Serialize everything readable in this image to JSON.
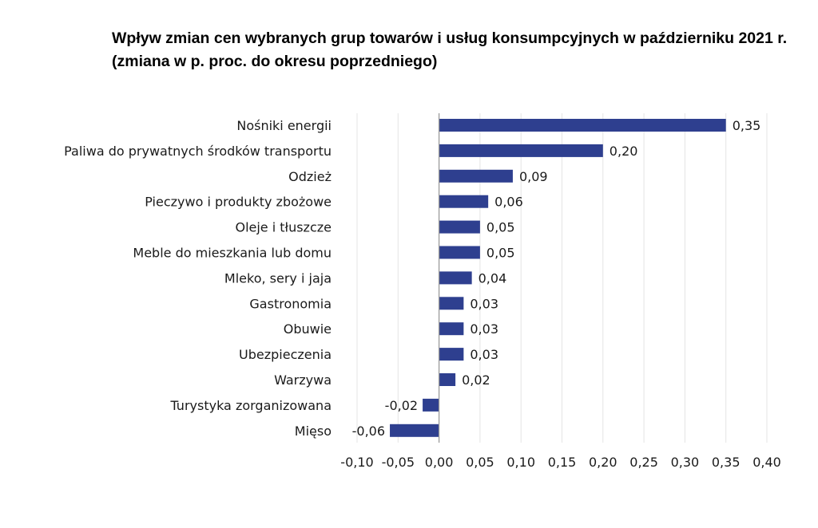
{
  "chart_data": {
    "type": "bar",
    "orientation": "horizontal",
    "title": "Wpływ zmian cen wybranych grup towarów i usług konsumpcyjnych w październiku 2021 r.",
    "subtitle": "(zmiana w p. proc. do okresu poprzedniego)",
    "categories": [
      "Nośniki energii",
      "Paliwa do prywatnych środków transportu",
      "Odzież",
      "Pieczywo i produkty zbożowe",
      "Oleje i tłuszcze",
      "Meble do mieszkania lub domu",
      "Mleko, sery i jaja",
      "Gastronomia",
      "Obuwie",
      "Ubezpieczenia",
      "Warzywa",
      "Turystyka zorganizowana",
      "Mięso"
    ],
    "values": [
      0.35,
      0.2,
      0.09,
      0.06,
      0.05,
      0.05,
      0.04,
      0.03,
      0.03,
      0.03,
      0.02,
      -0.02,
      -0.06
    ],
    "value_labels": [
      "0,35",
      "0,20",
      "0,09",
      "0,06",
      "0,05",
      "0,05",
      "0,04",
      "0,03",
      "0,03",
      "0,03",
      "0,02",
      "-0,02",
      "-0,06"
    ],
    "xlim": [
      -0.1,
      0.4
    ],
    "xticks": [
      -0.1,
      -0.05,
      0.0,
      0.05,
      0.1,
      0.15,
      0.2,
      0.25,
      0.3,
      0.35,
      0.4
    ],
    "xtick_labels": [
      "-0,10",
      "-0,05",
      "0,00",
      "0,05",
      "0,10",
      "0,15",
      "0,20",
      "0,25",
      "0,30",
      "0,35",
      "0,40"
    ],
    "xlabel": "",
    "ylabel": "",
    "grid": true,
    "bar_color": "#2e3f8f",
    "grid_color": "#e4e4e4",
    "axis_color": "#9a9a9a"
  }
}
